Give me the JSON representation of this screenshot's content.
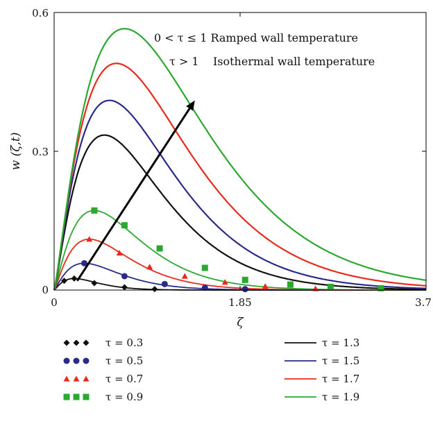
{
  "chart_data": {
    "type": "line",
    "xlabel": "ζ",
    "ylabel": "w (ζ,t)",
    "xlim": [
      0,
      3.7
    ],
    "ylim": [
      0,
      0.6
    ],
    "xticks": [
      "0",
      "1.85",
      "3.7"
    ],
    "yticks": [
      "0",
      "0.3",
      "0.6"
    ],
    "grid": false,
    "legend_position": "below",
    "annotations": [
      "0 < τ ≤ 1 Ramped wall temperature",
      "τ > 1    Isothermal wall temperature"
    ],
    "arrow": {
      "from": [
        0.23,
        0.02
      ],
      "to": [
        1.4,
        0.41
      ]
    },
    "series": [
      {
        "name": "τ = 0.3",
        "color": "#111111",
        "marker": "diamond",
        "peak_x": 0.2,
        "peak_y": 0.025,
        "marker_points": [
          [
            0.1,
            0.02
          ],
          [
            0.2,
            0.025
          ],
          [
            0.4,
            0.015
          ],
          [
            0.7,
            0.006
          ],
          [
            1.0,
            0.002
          ]
        ]
      },
      {
        "name": "τ = 0.5",
        "color": "#2a2a8a",
        "marker": "circle",
        "peak_x": 0.3,
        "peak_y": 0.058,
        "marker_points": [
          [
            0.3,
            0.058
          ],
          [
            0.7,
            0.03
          ],
          [
            1.1,
            0.013
          ],
          [
            1.5,
            0.005
          ],
          [
            1.9,
            0.002
          ]
        ]
      },
      {
        "name": "τ = 0.7",
        "color": "#e8291c",
        "marker": "triangle",
        "peak_x": 0.35,
        "peak_y": 0.11,
        "marker_points": [
          [
            0.35,
            0.11
          ],
          [
            0.65,
            0.08
          ],
          [
            0.95,
            0.05
          ],
          [
            1.3,
            0.03
          ],
          [
            1.7,
            0.017
          ],
          [
            2.1,
            0.008
          ],
          [
            2.6,
            0.003
          ]
        ]
      },
      {
        "name": "τ = 0.9",
        "color": "#2aa830",
        "marker": "square",
        "peak_x": 0.4,
        "peak_y": 0.172,
        "marker_points": [
          [
            0.4,
            0.172
          ],
          [
            0.7,
            0.14
          ],
          [
            1.05,
            0.09
          ],
          [
            1.5,
            0.048
          ],
          [
            1.9,
            0.022
          ],
          [
            2.35,
            0.012
          ],
          [
            2.75,
            0.007
          ],
          [
            3.25,
            0.004
          ]
        ]
      },
      {
        "name": "τ = 1.3",
        "color": "#111111",
        "marker": "none",
        "peak_x": 0.5,
        "peak_y": 0.335
      },
      {
        "name": "τ = 1.5",
        "color": "#2a2a8a",
        "marker": "none",
        "peak_x": 0.55,
        "peak_y": 0.41
      },
      {
        "name": "τ = 1.7",
        "color": "#e8291c",
        "marker": "none",
        "peak_x": 0.62,
        "peak_y": 0.49
      },
      {
        "name": "τ = 1.9",
        "color": "#2aa830",
        "marker": "none",
        "peak_x": 0.7,
        "peak_y": 0.565
      }
    ]
  }
}
